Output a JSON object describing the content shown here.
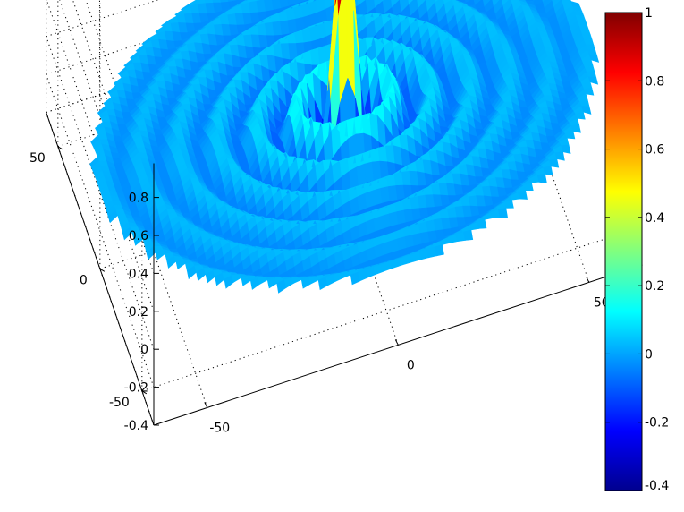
{
  "chart_data": [
    {
      "type": "surface",
      "title": "",
      "xlabel": "",
      "ylabel": "",
      "zlabel": "",
      "function": "z = sin(pi*r/5) / (pi*r/5), r = sqrt(x^2 + y^2); data present only for r <= 64 (corners empty)",
      "x_range": [
        -64,
        64
      ],
      "y_range": [
        -64,
        64
      ],
      "zlim": [
        -0.4,
        1
      ],
      "peak": {
        "x": 0,
        "y": 0,
        "z": 1
      },
      "ring_period": 10,
      "view": "3D perspective, MATLAB default (az -37.5, el 30)",
      "grid": true,
      "box": "dotted back planes",
      "colormap": "jet",
      "x_tick_labels": [
        "-50",
        "0",
        "50"
      ],
      "y_tick_labels": [
        "-50",
        "0",
        "50"
      ],
      "z_tick_labels": [
        "-0.4",
        "-0.2",
        "0",
        "0.2",
        "0.4",
        "0.6",
        "0.8"
      ]
    },
    {
      "type": "colorbar",
      "colormap": "jet",
      "clim": [
        -0.4,
        1
      ],
      "tick_labels": [
        "-0.4",
        "-0.2",
        "0",
        "0.2",
        "0.4",
        "0.6",
        "0.8",
        "1"
      ]
    }
  ]
}
